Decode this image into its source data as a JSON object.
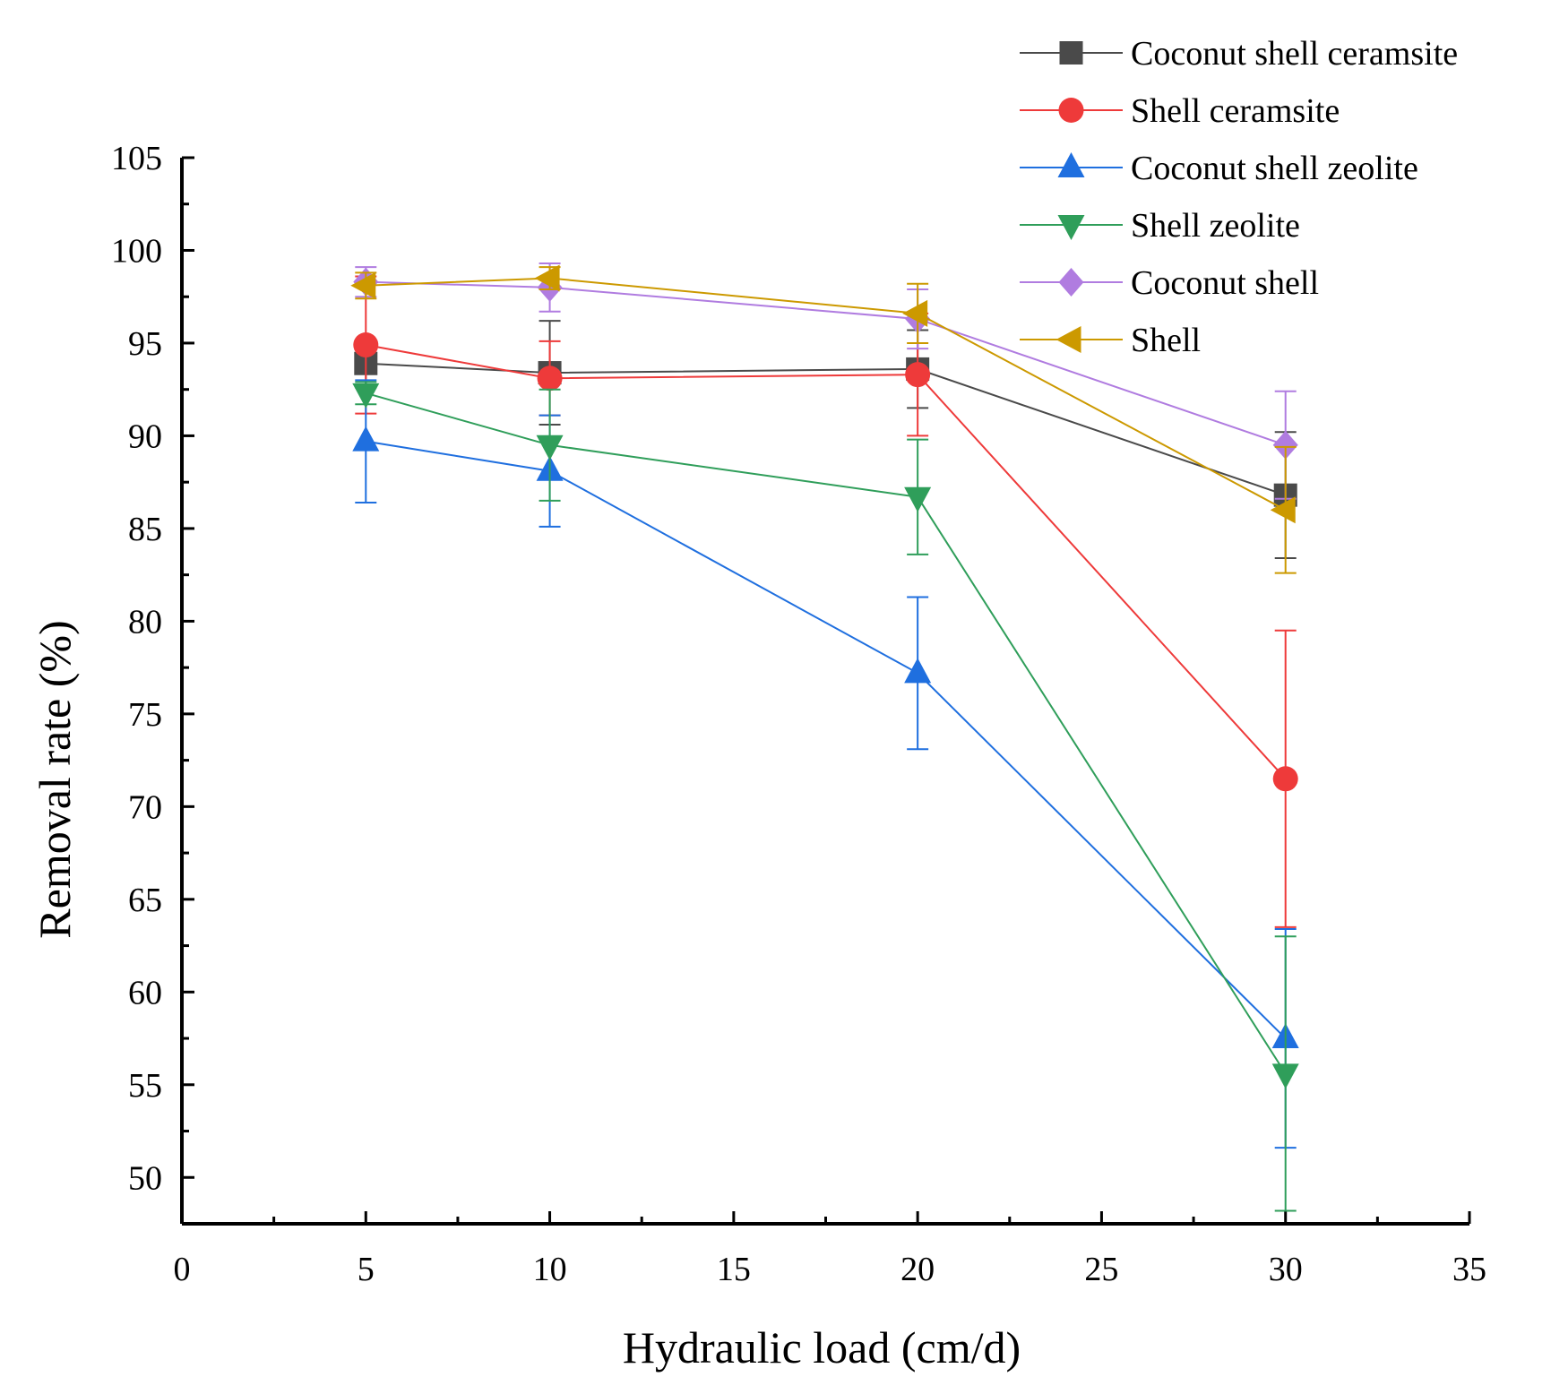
{
  "chart_data": {
    "type": "line",
    "title": "",
    "xlabel": "Hydraulic load (cm/d)",
    "ylabel": "Removal rate (%)",
    "xlim": [
      0,
      35
    ],
    "ylim": [
      47.5,
      105
    ],
    "xticks": [
      0,
      5,
      10,
      15,
      20,
      25,
      30,
      35
    ],
    "yticks": [
      50,
      55,
      60,
      65,
      70,
      75,
      80,
      85,
      90,
      95,
      100,
      105
    ],
    "xtick_labels": [
      "0",
      "5",
      "10",
      "15",
      "20",
      "25",
      "30",
      "35"
    ],
    "ytick_labels": [
      "50",
      "55",
      "60",
      "65",
      "70",
      "75",
      "80",
      "85",
      "90",
      "95",
      "100",
      "105"
    ],
    "grid": false,
    "legend_position": "top-right",
    "x": [
      5,
      10,
      20,
      30
    ],
    "series": [
      {
        "name": "Coconut shell ceramsite",
        "marker": "square",
        "color": "#4a4a4a",
        "values": [
          93.9,
          93.4,
          93.6,
          86.8
        ],
        "errors": [
          1.3,
          2.8,
          2.1,
          3.4
        ]
      },
      {
        "name": "Shell ceramsite",
        "marker": "circle",
        "color": "#ee3a3a",
        "values": [
          94.9,
          93.1,
          93.3,
          71.5
        ],
        "errors": [
          3.7,
          2.0,
          3.3,
          8.0
        ]
      },
      {
        "name": "Coconut shell zeolite",
        "marker": "triangle-up",
        "color": "#1f6fdf",
        "values": [
          89.7,
          88.1,
          77.2,
          57.5
        ],
        "errors": [
          3.3,
          3.0,
          4.1,
          5.9
        ]
      },
      {
        "name": "Shell zeolite",
        "marker": "triangle-down",
        "color": "#2f9e5a",
        "values": [
          92.3,
          89.5,
          86.7,
          55.6
        ],
        "errors": [
          0.6,
          3.0,
          3.1,
          7.4
        ]
      },
      {
        "name": "Coconut shell",
        "marker": "diamond",
        "color": "#b07ce0",
        "values": [
          98.3,
          98.0,
          96.3,
          89.5
        ],
        "errors": [
          0.8,
          1.3,
          1.6,
          2.9
        ]
      },
      {
        "name": "Shell",
        "marker": "triangle-left",
        "color": "#cc9900",
        "values": [
          98.1,
          98.5,
          96.6,
          86.0
        ],
        "errors": [
          0.7,
          0.6,
          1.6,
          3.4
        ]
      }
    ]
  }
}
